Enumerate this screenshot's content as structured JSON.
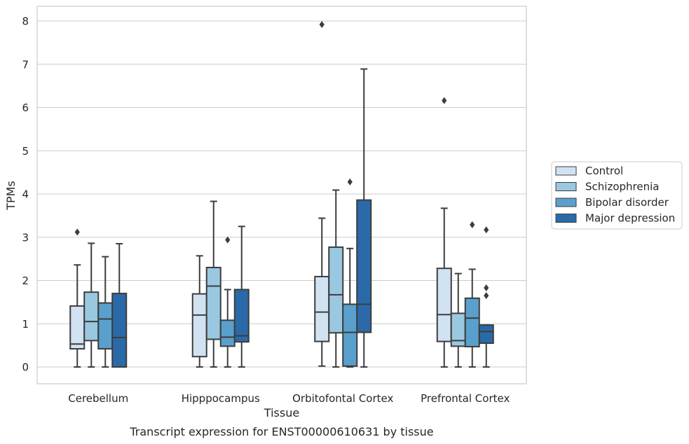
{
  "chart_data": {
    "type": "box",
    "title": "",
    "caption": "Transcript expression for ENST00000610631 by tissue",
    "xlabel": "Tissue",
    "ylabel": "TPMs",
    "ylim": [
      -0.4,
      8.35
    ],
    "yticks": [
      0,
      1,
      2,
      3,
      4,
      5,
      6,
      7,
      8
    ],
    "grid": "y",
    "legend_position": "right",
    "categories": [
      "Cerebellum",
      "Hipppocampus",
      "Orbitofontal Cortex",
      "Prefrontal Cortex"
    ],
    "series": [
      {
        "name": "Control",
        "color": "#d1e2f2",
        "boxes": [
          {
            "whislo": 0,
            "q1": 0.42,
            "med": 0.53,
            "q3": 1.41,
            "whishi": 2.36,
            "fliers": [
              3.12
            ]
          },
          {
            "whislo": 0,
            "q1": 0.24,
            "med": 1.2,
            "q3": 1.69,
            "whishi": 2.57,
            "fliers": []
          },
          {
            "whislo": 0.02,
            "q1": 0.59,
            "med": 1.27,
            "q3": 2.09,
            "whishi": 3.44,
            "fliers": [
              7.92
            ]
          },
          {
            "whislo": 0,
            "q1": 0.59,
            "med": 1.21,
            "q3": 2.28,
            "whishi": 3.67,
            "fliers": [
              6.16
            ]
          }
        ]
      },
      {
        "name": "Schizophrenia",
        "color": "#9ac8e0",
        "boxes": [
          {
            "whislo": 0,
            "q1": 0.61,
            "med": 1.05,
            "q3": 1.73,
            "whishi": 2.86,
            "fliers": []
          },
          {
            "whislo": 0,
            "q1": 0.64,
            "med": 1.87,
            "q3": 2.3,
            "whishi": 3.83,
            "fliers": []
          },
          {
            "whislo": 0,
            "q1": 0.79,
            "med": 1.67,
            "q3": 2.77,
            "whishi": 4.09,
            "fliers": []
          },
          {
            "whislo": 0,
            "q1": 0.48,
            "med": 0.61,
            "q3": 1.24,
            "whishi": 2.16,
            "fliers": []
          }
        ]
      },
      {
        "name": "Bipolar disorder",
        "color": "#5aa0cd",
        "boxes": [
          {
            "whislo": 0,
            "q1": 0.42,
            "med": 1.11,
            "q3": 1.48,
            "whishi": 2.55,
            "fliers": []
          },
          {
            "whislo": 0,
            "q1": 0.48,
            "med": 0.69,
            "q3": 1.08,
            "whishi": 1.79,
            "fliers": [
              2.94
            ]
          },
          {
            "whislo": 0,
            "q1": 0.02,
            "med": 0.8,
            "q3": 1.45,
            "whishi": 2.74,
            "fliers": [
              4.28
            ]
          },
          {
            "whislo": 0,
            "q1": 0.47,
            "med": 1.13,
            "q3": 1.59,
            "whishi": 2.26,
            "fliers": [
              3.29
            ]
          }
        ]
      },
      {
        "name": "Major depression",
        "color": "#2a6aa8",
        "boxes": [
          {
            "whislo": 0,
            "q1": 0,
            "med": 0.68,
            "q3": 1.7,
            "whishi": 2.85,
            "fliers": []
          },
          {
            "whislo": 0,
            "q1": 0.58,
            "med": 0.72,
            "q3": 1.79,
            "whishi": 3.25,
            "fliers": []
          },
          {
            "whislo": 0,
            "q1": 0.8,
            "med": 1.45,
            "q3": 3.86,
            "whishi": 6.89,
            "fliers": []
          },
          {
            "whislo": 0,
            "q1": 0.55,
            "med": 0.82,
            "q3": 0.97,
            "whishi": 0.97,
            "fliers": [
              1.65,
              1.83,
              3.17
            ]
          }
        ]
      }
    ]
  }
}
